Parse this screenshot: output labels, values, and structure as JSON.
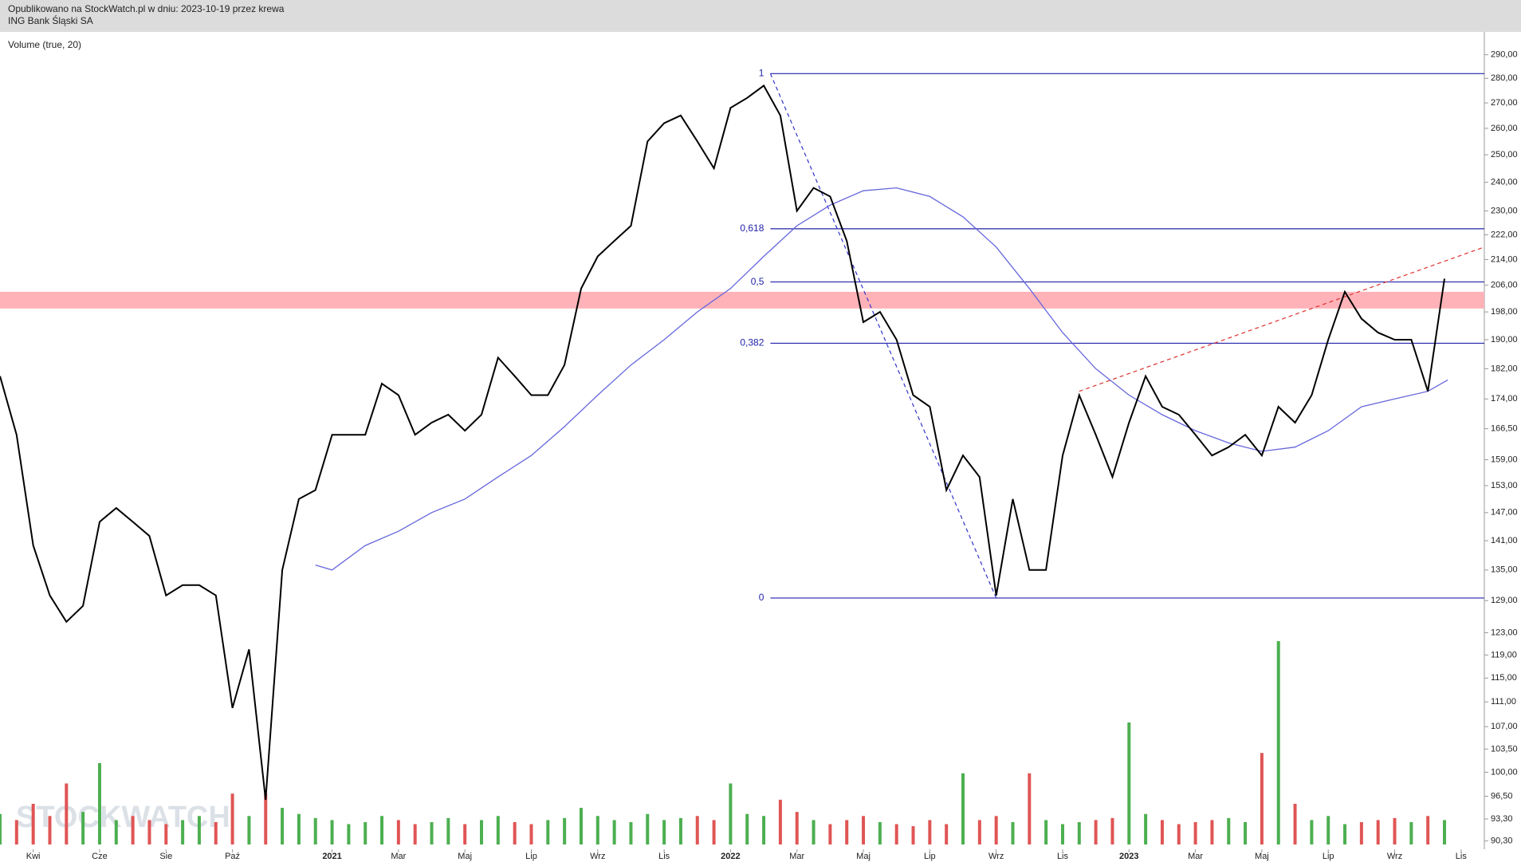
{
  "chart_data": {
    "type": "line",
    "header": [
      "Opublikowano na StockWatch.pl w dniu: 2023-10-19 przez krewa",
      "ING Bank Śląski SA"
    ],
    "indicator_label": "Volume (true, 20)",
    "watermark": "STOCKWATCH",
    "log_scale": true,
    "xlim": [
      0,
      44.7
    ],
    "ylim": [
      89.2,
      300
    ],
    "xticks": [
      {
        "value": 1,
        "label": "Kwi"
      },
      {
        "value": 3,
        "label": "Cze"
      },
      {
        "value": 5,
        "label": "Sie"
      },
      {
        "value": 7,
        "label": "Paź"
      },
      {
        "value": 10,
        "label": "2021"
      },
      {
        "value": 12,
        "label": "Mar"
      },
      {
        "value": 14,
        "label": "Maj"
      },
      {
        "value": 16,
        "label": "Lip"
      },
      {
        "value": 18,
        "label": "Wrz"
      },
      {
        "value": 20,
        "label": "Lis"
      },
      {
        "value": 22,
        "label": "2022"
      },
      {
        "value": 24,
        "label": "Mar"
      },
      {
        "value": 26,
        "label": "Maj"
      },
      {
        "value": 28,
        "label": "Lip"
      },
      {
        "value": 30,
        "label": "Wrz"
      },
      {
        "value": 32,
        "label": "Lis"
      },
      {
        "value": 34,
        "label": "2023"
      },
      {
        "value": 36,
        "label": "Mar"
      },
      {
        "value": 38,
        "label": "Maj"
      },
      {
        "value": 40,
        "label": "Lip"
      },
      {
        "value": 42,
        "label": "Wrz"
      },
      {
        "value": 44,
        "label": "Lis"
      }
    ],
    "yticks": [
      {
        "value": 290,
        "label": "290,00"
      },
      {
        "value": 280,
        "label": "280,00"
      },
      {
        "value": 270,
        "label": "270,00"
      },
      {
        "value": 260,
        "label": "260,00"
      },
      {
        "value": 250,
        "label": "250,00"
      },
      {
        "value": 240,
        "label": "240,00"
      },
      {
        "value": 230,
        "label": "230,00"
      },
      {
        "value": 222,
        "label": "222,00"
      },
      {
        "value": 214,
        "label": "214,00"
      },
      {
        "value": 206,
        "label": "206,00"
      },
      {
        "value": 198,
        "label": "198,00"
      },
      {
        "value": 190,
        "label": "190,00"
      },
      {
        "value": 182,
        "label": "182,00"
      },
      {
        "value": 174,
        "label": "174,00"
      },
      {
        "value": 166.5,
        "label": "166,50"
      },
      {
        "value": 159,
        "label": "159,00"
      },
      {
        "value": 153,
        "label": "153,00"
      },
      {
        "value": 147,
        "label": "147,00"
      },
      {
        "value": 141,
        "label": "141,00"
      },
      {
        "value": 135,
        "label": "135,00"
      },
      {
        "value": 129,
        "label": "129,00"
      },
      {
        "value": 123,
        "label": "123,00"
      },
      {
        "value": 119,
        "label": "119,00"
      },
      {
        "value": 115,
        "label": "115,00"
      },
      {
        "value": 111,
        "label": "111,00"
      },
      {
        "value": 107,
        "label": "107,00"
      },
      {
        "value": 103.5,
        "label": "103,50"
      },
      {
        "value": 100,
        "label": "100,00"
      },
      {
        "value": 96.5,
        "label": "96,50"
      },
      {
        "value": 93.3,
        "label": "93,30"
      },
      {
        "value": 90.3,
        "label": "90,30"
      }
    ],
    "price": {
      "color": "#000000",
      "x": [
        0,
        0.5,
        1,
        1.5,
        2,
        2.5,
        3,
        3.5,
        4,
        4.5,
        5,
        5.5,
        6,
        6.5,
        7,
        7.5,
        8,
        8.5,
        9,
        9.5,
        10,
        10.5,
        11,
        11.5,
        12,
        12.5,
        13,
        13.5,
        14,
        14.5,
        15,
        15.5,
        16,
        16.5,
        17,
        17.5,
        18,
        18.5,
        19,
        19.5,
        20,
        20.5,
        21,
        21.5,
        22,
        22.5,
        23,
        23.5,
        24,
        24.5,
        25,
        25.5,
        26,
        26.5,
        27,
        27.5,
        28,
        28.5,
        29,
        29.5,
        30,
        30.5,
        31,
        31.5,
        32,
        32.5,
        33,
        33.5,
        34,
        34.5,
        35,
        35.5,
        36,
        36.5,
        37,
        37.5,
        38,
        38.5,
        39,
        39.5,
        40,
        40.5,
        41,
        41.5,
        42,
        42.5,
        43,
        43.5
      ],
      "values": [
        180,
        165,
        140,
        130,
        125,
        128,
        145,
        148,
        145,
        142,
        130,
        132,
        132,
        130,
        110,
        120,
        96,
        135,
        150,
        152,
        165,
        165,
        165,
        178,
        175,
        165,
        168,
        170,
        166,
        170,
        185,
        180,
        175,
        175,
        183,
        205,
        215,
        220,
        225,
        255,
        262,
        265,
        255,
        245,
        268,
        272,
        277,
        265,
        230,
        238,
        235,
        220,
        195,
        198,
        190,
        175,
        172,
        152,
        160,
        155,
        130,
        150,
        135,
        135,
        160,
        175,
        165,
        155,
        168,
        180,
        172,
        170,
        165,
        160,
        162,
        165,
        160,
        172,
        168,
        175,
        190,
        204,
        196,
        192,
        190,
        190,
        176,
        208
      ]
    },
    "moving_average": {
      "color": "#6666dd",
      "x": [
        9.5,
        10,
        11,
        12,
        13,
        14,
        15,
        16,
        17,
        18,
        19,
        20,
        21,
        22,
        23,
        24,
        25,
        26,
        27,
        28,
        29,
        30,
        31,
        32,
        33,
        34,
        35,
        36,
        37,
        38,
        39,
        40,
        41,
        42,
        43,
        43.6
      ],
      "values": [
        136,
        135,
        140,
        143,
        147,
        150,
        155,
        160,
        167,
        175,
        183,
        190,
        198,
        205,
        215,
        225,
        232,
        237,
        238,
        235,
        228,
        218,
        205,
        192,
        182,
        175,
        170,
        166,
        163,
        161,
        162,
        166,
        172,
        174,
        176,
        179
      ]
    },
    "volume": {
      "colors": {
        "up": "#4caf50",
        "down": "#e05555"
      },
      "values": [
        15,
        12,
        20,
        14,
        30,
        16,
        40,
        12,
        14,
        12,
        10,
        12,
        14,
        11,
        25,
        14,
        25,
        18,
        15,
        13,
        12,
        10,
        11,
        14,
        12,
        10,
        11,
        13,
        10,
        12,
        14,
        11,
        10,
        12,
        13,
        18,
        14,
        12,
        11,
        15,
        12,
        13,
        14,
        12,
        30,
        15,
        14,
        22,
        16,
        12,
        10,
        12,
        14,
        11,
        10,
        9,
        12,
        10,
        35,
        12,
        14,
        11,
        35,
        12,
        10,
        11,
        12,
        13,
        60,
        15,
        12,
        10,
        11,
        12,
        13,
        11,
        45,
        100,
        20,
        12,
        14,
        10,
        11,
        12,
        13,
        11,
        14,
        12
      ]
    },
    "fib_levels": [
      {
        "value": 282,
        "label": "1"
      },
      {
        "value": 224,
        "label": "0,618"
      },
      {
        "value": 207,
        "label": "0,5"
      },
      {
        "value": 189,
        "label": "0,382"
      },
      {
        "value": 129.5,
        "label": "0"
      }
    ],
    "fib_color": "#2222aa",
    "fib_swing": {
      "x": [
        23.2,
        30
      ],
      "values": [
        282,
        129.5
      ],
      "color": "#3333cc"
    },
    "trendline": {
      "x": [
        32.5,
        44.7
      ],
      "values": [
        176,
        218
      ],
      "color": "#e03030"
    },
    "zone": [
      199,
      204
    ],
    "zone_color": "#ffb3b8"
  }
}
